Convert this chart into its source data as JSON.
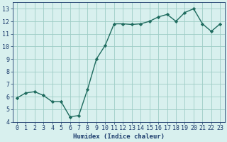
{
  "title": "",
  "xlabel": "Humidex (Indice chaleur)",
  "ylabel": "",
  "x_values": [
    0,
    1,
    2,
    3,
    4,
    5,
    6,
    7,
    8,
    9,
    10,
    11,
    12,
    13,
    14,
    15,
    16,
    17,
    18,
    19,
    20,
    21,
    22,
    23
  ],
  "y_values": [
    5.9,
    6.3,
    6.4,
    6.1,
    5.6,
    5.6,
    4.4,
    4.5,
    6.6,
    9.0,
    10.1,
    11.8,
    11.8,
    11.75,
    11.8,
    12.0,
    12.35,
    12.55,
    12.0,
    12.7,
    13.0,
    11.8,
    11.2,
    11.8
  ],
  "line_color": "#1e6b5e",
  "marker": "D",
  "marker_size": 2.2,
  "background_color": "#d8f0ee",
  "grid_color": "#9ecdc6",
  "label_color": "#1a3a6b",
  "ylim": [
    4,
    13.5
  ],
  "xlim": [
    -0.5,
    23.5
  ],
  "yticks": [
    4,
    5,
    6,
    7,
    8,
    9,
    10,
    11,
    12,
    13
  ],
  "xticks": [
    0,
    1,
    2,
    3,
    4,
    5,
    6,
    7,
    8,
    9,
    10,
    11,
    12,
    13,
    14,
    15,
    16,
    17,
    18,
    19,
    20,
    21,
    22,
    23
  ],
  "xlabel_fontsize": 6.5,
  "tick_fontsize": 6,
  "line_width": 1.0
}
